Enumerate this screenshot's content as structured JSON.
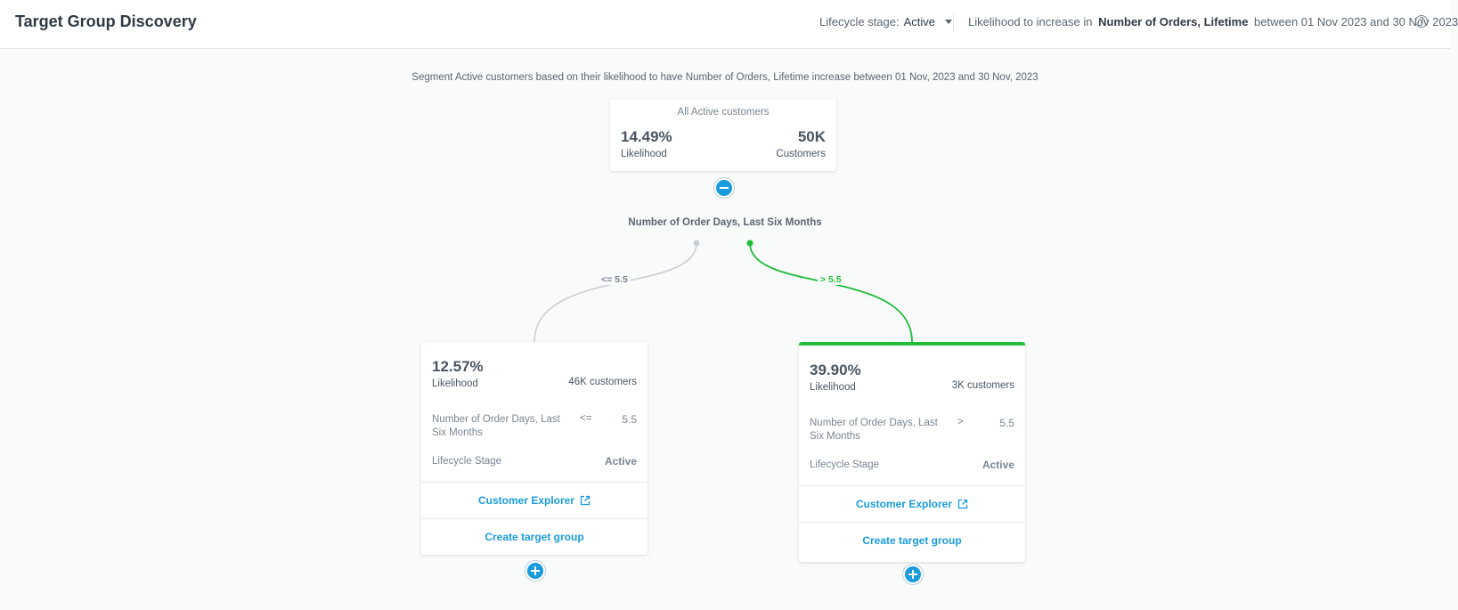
{
  "header": {
    "title": "Target Group Discovery",
    "lifecycle_label": "Lifecycle stage:",
    "lifecycle_value": "Active",
    "likelihood_prefix": "Likelihood to increase in",
    "likelihood_metric": "Number of Orders, Lifetime",
    "likelihood_range": "between 01 Nov 2023 and 30 Nov 2023",
    "help_icon": "?"
  },
  "subtitle": "Segment Active customers based on their likelihood to have Number of Orders, Lifetime increase between 01 Nov, 2023 and 30 Nov, 2023",
  "root": {
    "title": "All Active customers",
    "likelihood": "14.49%",
    "likelihood_label": "Likelihood",
    "customers": "50K",
    "customers_label": "Customers"
  },
  "split": {
    "feature": "Number of Order Days, Last Six Months",
    "left_label": "<= 5.5",
    "right_label": "> 5.5"
  },
  "nodes": [
    {
      "likelihood": "12.57%",
      "likelihood_label": "Likelihood",
      "customers": "46K customers",
      "rule_name": "Number of Order Days, Last Six Months",
      "rule_op": "<=",
      "rule_value": "5.5",
      "stage_name": "Lifecycle Stage",
      "stage_value": "Active",
      "explorer_label": "Customer Explorer",
      "create_label": "Create target group"
    },
    {
      "likelihood": "39.90%",
      "likelihood_label": "Likelihood",
      "customers": "3K customers",
      "rule_name": "Number of Order Days, Last Six Months",
      "rule_op": ">",
      "rule_value": "5.5",
      "stage_name": "Lifecycle Stage",
      "stage_value": "Active",
      "explorer_label": "Customer Explorer",
      "create_label": "Create target group"
    }
  ],
  "colors": {
    "accent_blue": "#1a9bdb",
    "selected_green": "#1fbd3a",
    "muted_line": "#c9cfd4"
  }
}
